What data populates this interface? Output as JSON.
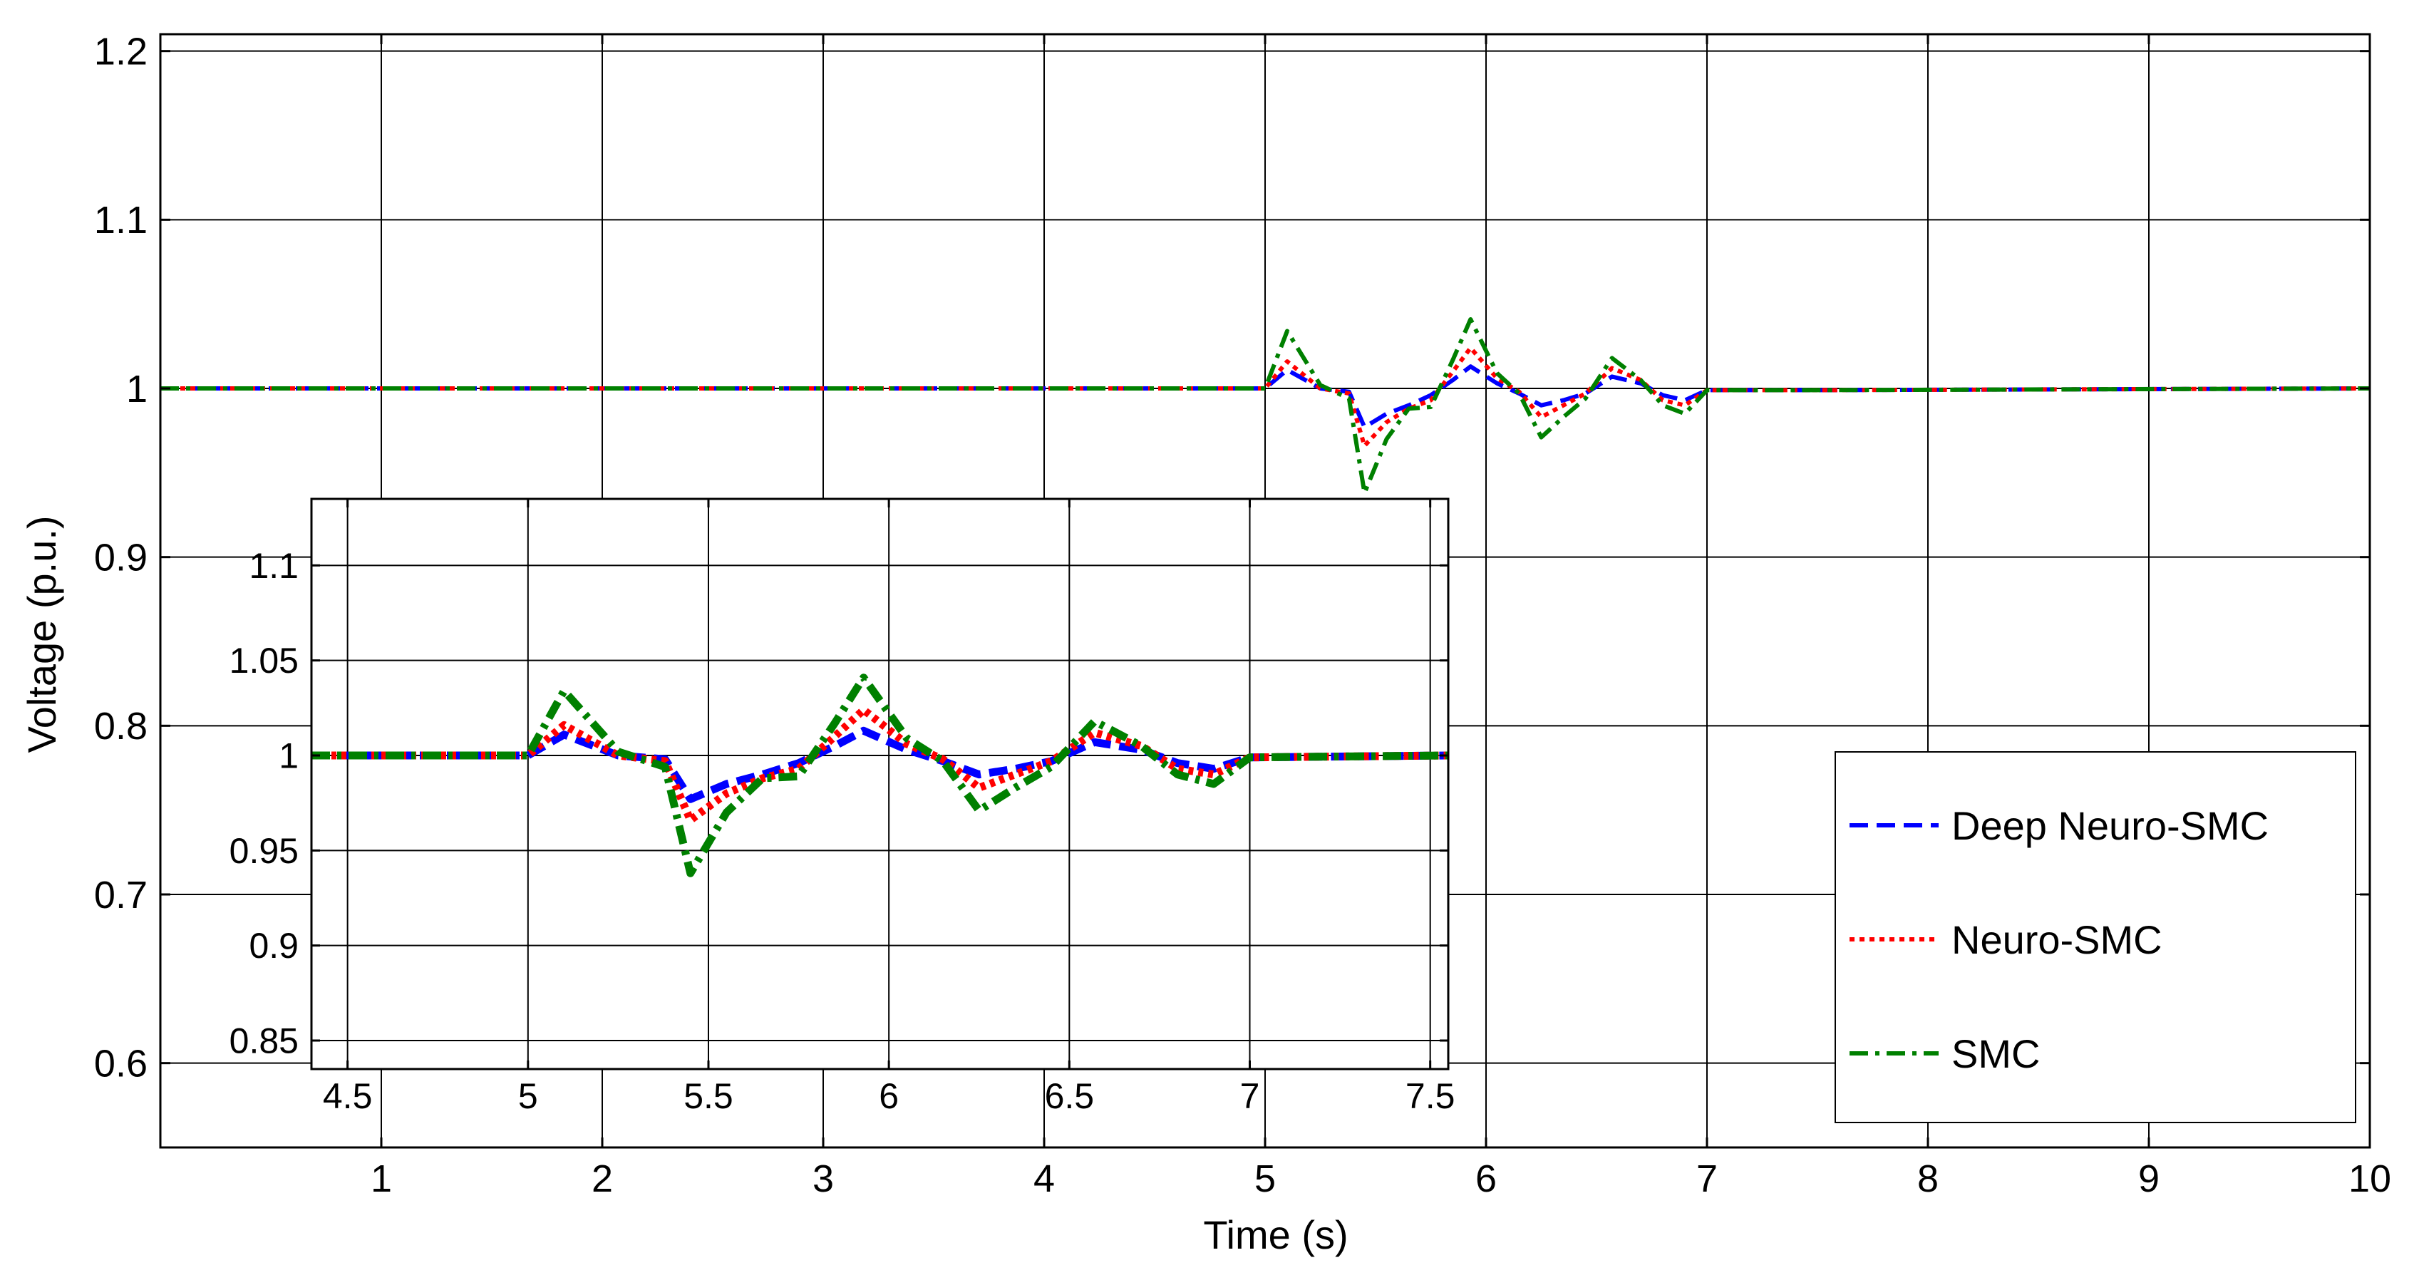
{
  "chart_data": [
    {
      "type": "line",
      "title": "",
      "xlabel": "Time (s)",
      "ylabel": "Voltage (p.u.)",
      "xlim": [
        0,
        10
      ],
      "ylim": [
        0.55,
        1.21
      ],
      "xticks": [
        1,
        2,
        3,
        4,
        5,
        6,
        7,
        8,
        9,
        10
      ],
      "yticks": [
        0.6,
        0.7,
        0.8,
        0.9,
        1,
        1.1,
        1.2
      ],
      "xtick_labels": [
        "1",
        "2",
        "3",
        "4",
        "5",
        "6",
        "7",
        "8",
        "9",
        "10"
      ],
      "ytick_labels": [
        "0.6",
        "0.7",
        "0.8",
        "0.9",
        "1",
        "1.1",
        "1.2"
      ],
      "grid": true,
      "legend": {
        "placement": "bottom-right"
      },
      "series": [
        {
          "name": "Deep Neuro-SMC",
          "color": "#0000ff",
          "style": "dashed",
          "x": [
            0,
            5.0,
            5.1,
            5.25,
            5.38,
            5.45,
            5.55,
            5.65,
            5.75,
            5.85,
            5.93,
            6.05,
            6.15,
            6.25,
            6.35,
            6.45,
            6.57,
            6.7,
            6.8,
            6.9,
            7.0,
            7.5,
            10
          ],
          "y": [
            1.0,
            1.0,
            1.011,
            1.0,
            0.998,
            0.977,
            0.985,
            0.99,
            0.996,
            1.005,
            1.013,
            1.003,
            0.997,
            0.99,
            0.993,
            0.997,
            1.007,
            1.003,
            0.996,
            0.993,
            0.999,
            0.999,
            1.0
          ]
        },
        {
          "name": "Neuro-SMC",
          "color": "#ff0000",
          "style": "dotted",
          "x": [
            0,
            5.0,
            5.1,
            5.25,
            5.38,
            5.45,
            5.55,
            5.65,
            5.75,
            5.85,
            5.93,
            6.05,
            6.15,
            6.25,
            6.35,
            6.45,
            6.57,
            6.7,
            6.8,
            6.9,
            7.0,
            7.5,
            10
          ],
          "y": [
            1.0,
            1.0,
            1.016,
            1.0,
            0.997,
            0.966,
            0.98,
            0.988,
            0.993,
            1.01,
            1.024,
            1.006,
            0.998,
            0.983,
            0.99,
            0.997,
            1.012,
            1.005,
            0.993,
            0.99,
            0.999,
            0.999,
            1.0
          ]
        },
        {
          "name": "SMC",
          "color": "#008000",
          "style": "dashdot",
          "x": [
            0,
            5.0,
            5.1,
            5.25,
            5.38,
            5.45,
            5.55,
            5.65,
            5.75,
            5.85,
            5.93,
            6.05,
            6.15,
            6.25,
            6.35,
            6.45,
            6.57,
            6.7,
            6.8,
            6.9,
            7.0,
            7.5,
            10
          ],
          "y": [
            1.0,
            1.0,
            1.034,
            1.002,
            0.994,
            0.938,
            0.97,
            0.988,
            0.989,
            1.017,
            1.041,
            1.009,
            0.997,
            0.971,
            0.983,
            0.994,
            1.018,
            1.005,
            0.99,
            0.985,
            0.999,
            0.999,
            1.0
          ]
        }
      ]
    },
    {
      "type": "line",
      "title": "",
      "xlabel": "",
      "ylabel": "",
      "xlim": [
        4.4,
        7.55
      ],
      "ylim": [
        0.835,
        1.135
      ],
      "xticks": [
        4.5,
        5,
        5.5,
        6,
        6.5,
        7,
        7.5
      ],
      "yticks": [
        0.85,
        0.9,
        0.95,
        1,
        1.05,
        1.1
      ],
      "xtick_labels": [
        "4.5",
        "5",
        "5.5",
        "6",
        "6.5",
        "7",
        "7.5"
      ],
      "ytick_labels": [
        "0.85",
        "0.9",
        "0.95",
        "1",
        "1.05",
        "1.1"
      ],
      "grid": true,
      "legend": null,
      "series": [
        {
          "color": "#0000ff",
          "style": "dashed",
          "x": [
            4.4,
            5.0,
            5.1,
            5.25,
            5.38,
            5.45,
            5.55,
            5.65,
            5.75,
            5.85,
            5.93,
            6.05,
            6.15,
            6.25,
            6.35,
            6.45,
            6.57,
            6.7,
            6.8,
            6.9,
            7.0,
            7.55
          ],
          "y": [
            1.0,
            1.0,
            1.011,
            1.0,
            0.998,
            0.977,
            0.985,
            0.99,
            0.996,
            1.005,
            1.013,
            1.003,
            0.997,
            0.99,
            0.993,
            0.997,
            1.007,
            1.003,
            0.996,
            0.993,
            0.999,
            1.0
          ]
        },
        {
          "color": "#ff0000",
          "style": "dotted",
          "x": [
            4.4,
            5.0,
            5.1,
            5.25,
            5.38,
            5.45,
            5.55,
            5.65,
            5.75,
            5.85,
            5.93,
            6.05,
            6.15,
            6.25,
            6.35,
            6.45,
            6.57,
            6.7,
            6.8,
            6.9,
            7.0,
            7.55
          ],
          "y": [
            1.0,
            1.0,
            1.016,
            1.0,
            0.997,
            0.966,
            0.98,
            0.988,
            0.993,
            1.01,
            1.024,
            1.006,
            0.998,
            0.983,
            0.99,
            0.997,
            1.012,
            1.005,
            0.993,
            0.99,
            0.999,
            1.0
          ]
        },
        {
          "color": "#008000",
          "style": "dashdot",
          "x": [
            4.4,
            5.0,
            5.1,
            5.25,
            5.38,
            5.45,
            5.55,
            5.65,
            5.75,
            5.85,
            5.93,
            6.05,
            6.15,
            6.25,
            6.35,
            6.45,
            6.57,
            6.7,
            6.8,
            6.9,
            7.0,
            7.55
          ],
          "y": [
            1.0,
            1.0,
            1.034,
            1.002,
            0.994,
            0.938,
            0.97,
            0.988,
            0.989,
            1.017,
            1.041,
            1.009,
            0.997,
            0.971,
            0.983,
            0.994,
            1.018,
            1.005,
            0.99,
            0.985,
            0.999,
            1.0
          ]
        }
      ]
    }
  ]
}
